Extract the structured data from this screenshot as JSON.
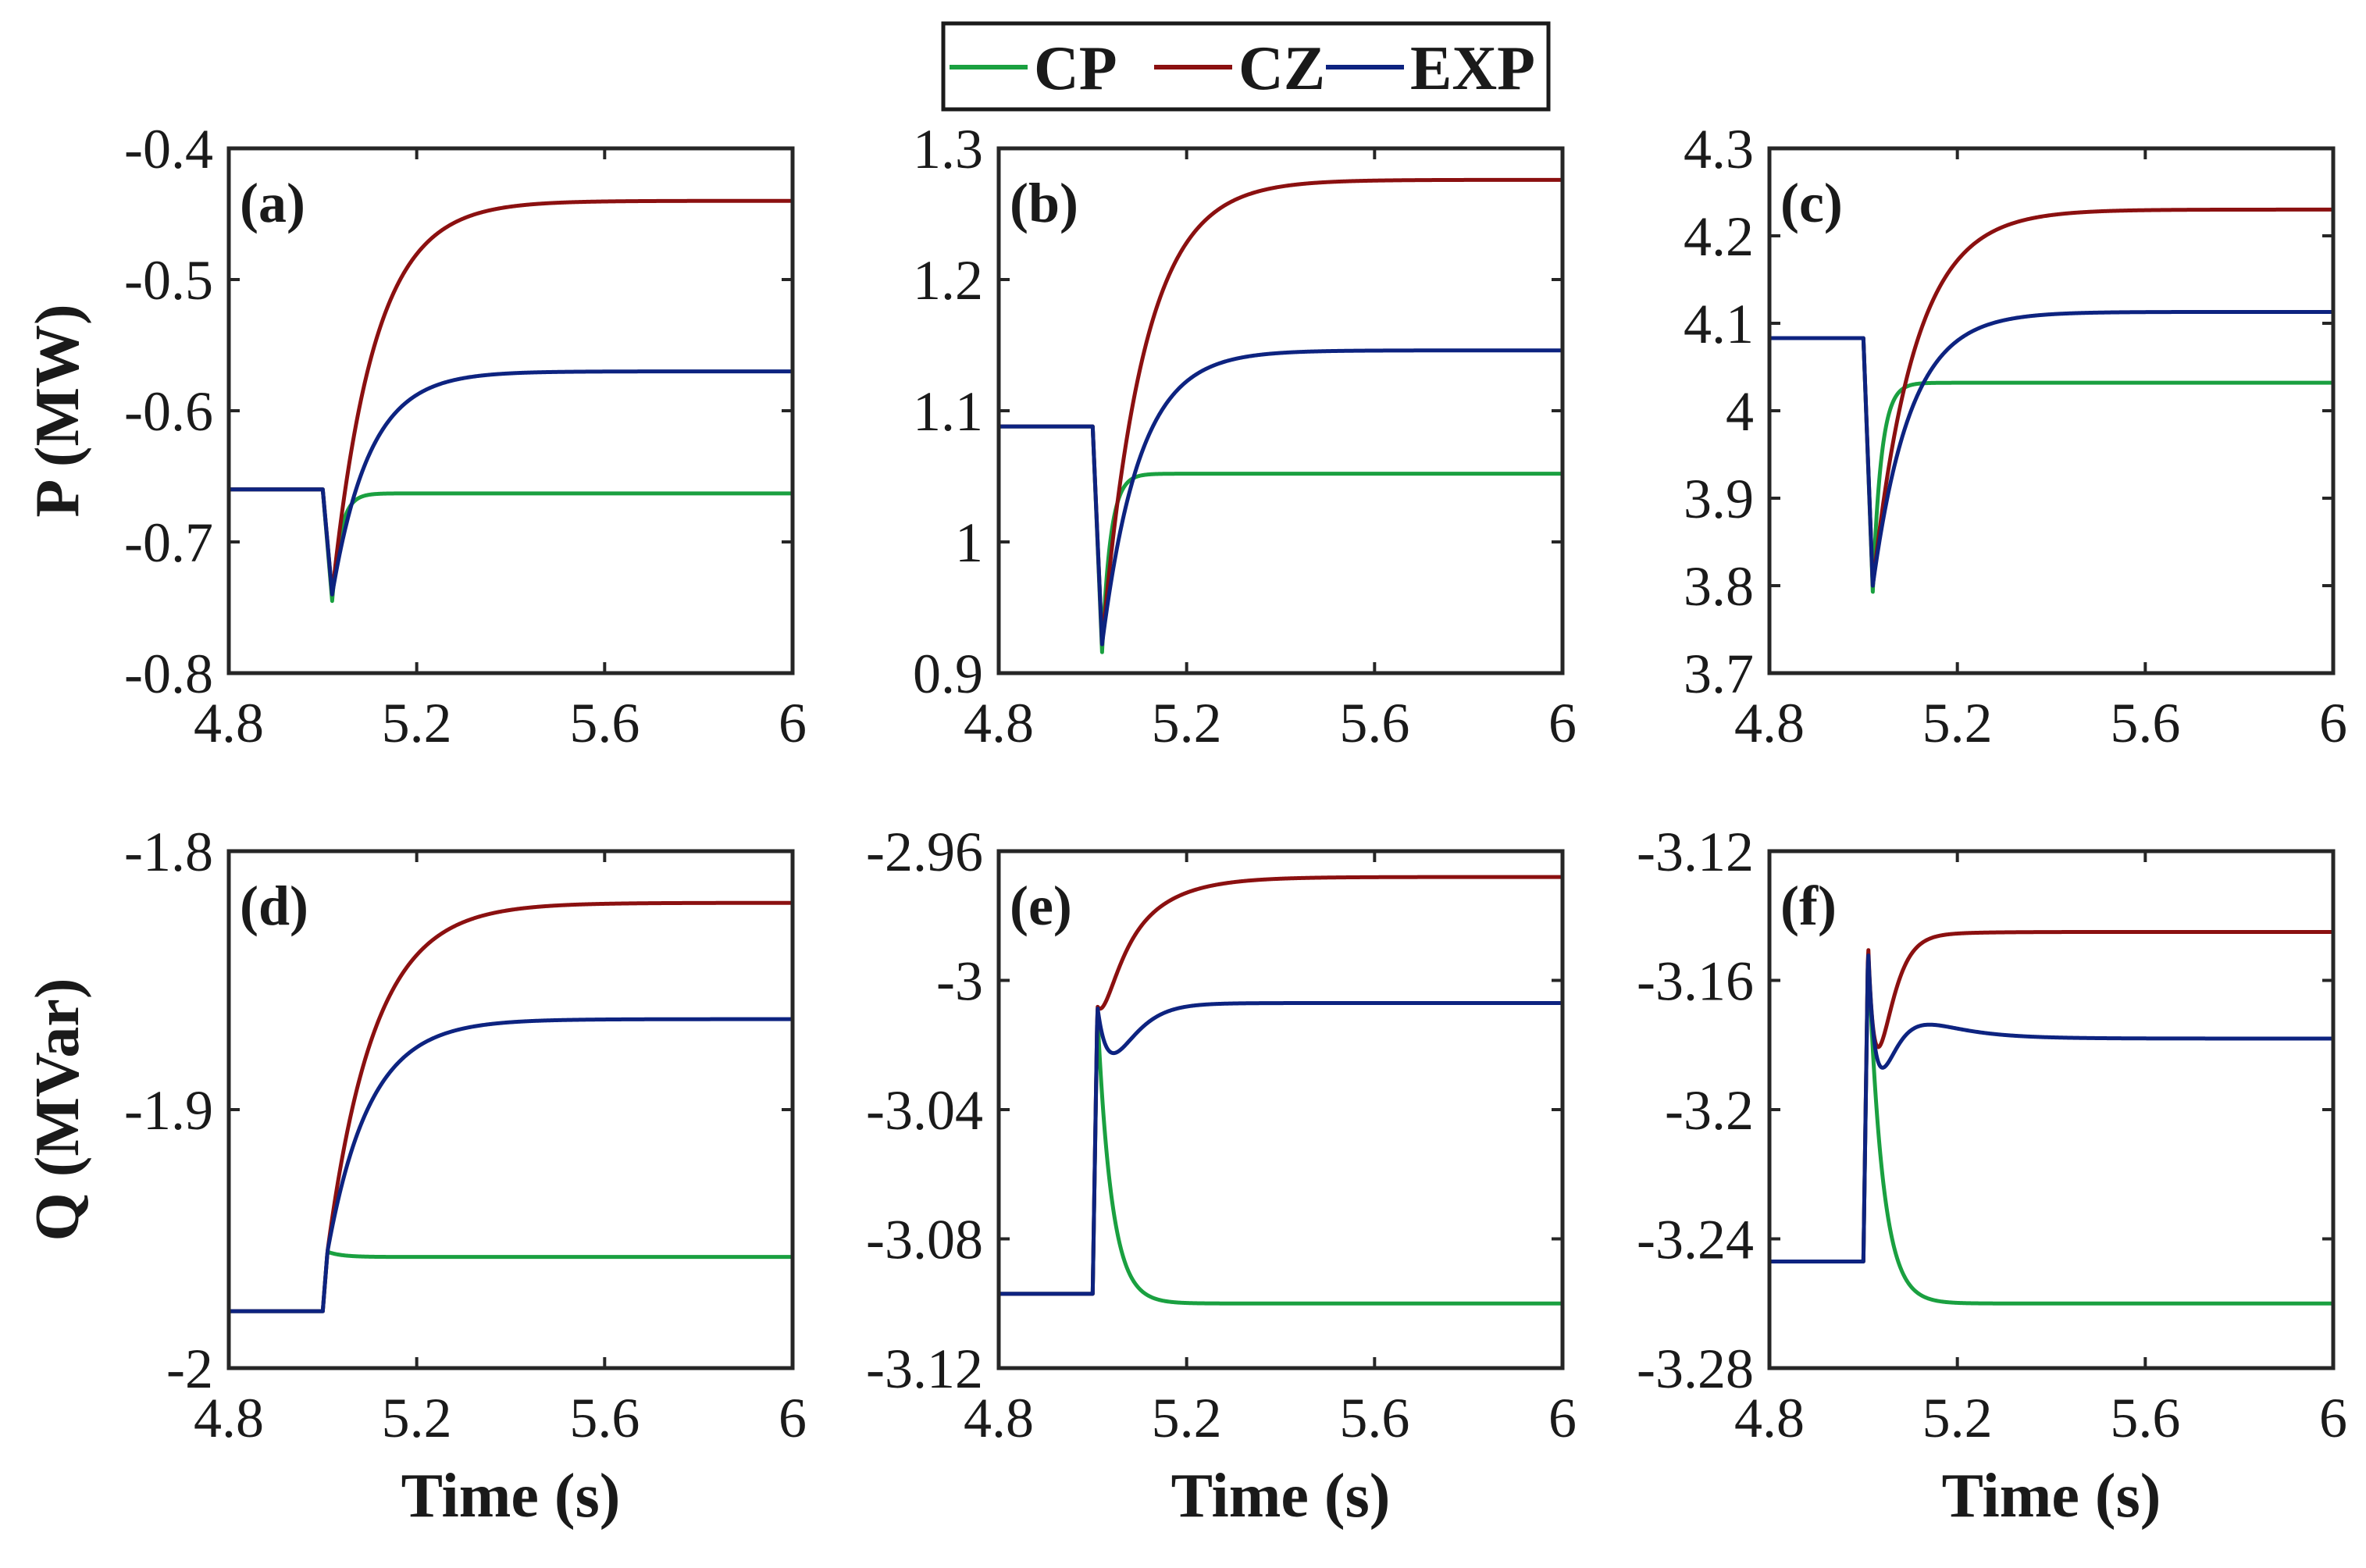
{
  "chart_data": [
    {
      "type": "line",
      "panel": "(a)",
      "ylabel": "P (MW)",
      "xlabel": "",
      "xlim": [
        4.8,
        6
      ],
      "ylim": [
        -0.8,
        -0.4
      ],
      "xticks": [
        "4.8",
        "5.2",
        "5.6",
        "6"
      ],
      "yticks": [
        "-0.4",
        "-0.5",
        "-0.6",
        "-0.7",
        "-0.8"
      ],
      "x_disturbance": 5.0,
      "pre": -0.66,
      "series": [
        {
          "name": "CP",
          "dip": -0.745,
          "final": -0.663,
          "tau": 0.018
        },
        {
          "name": "CZ",
          "dip": -0.74,
          "final": -0.44,
          "tau": 0.09
        },
        {
          "name": "EXP",
          "dip": -0.74,
          "final": -0.57,
          "tau": 0.08
        }
      ]
    },
    {
      "type": "line",
      "panel": "(b)",
      "ylabel": "",
      "xlabel": "",
      "xlim": [
        4.8,
        6
      ],
      "ylim": [
        0.9,
        1.3
      ],
      "xticks": [
        "4.8",
        "5.2",
        "5.6",
        "6"
      ],
      "yticks": [
        "1.3",
        "1.2",
        "1.1",
        "1",
        "0.9"
      ],
      "x_disturbance": 5.0,
      "pre": 1.088,
      "series": [
        {
          "name": "CP",
          "dip": 0.916,
          "final": 1.052,
          "tau": 0.018
        },
        {
          "name": "CZ",
          "dip": 0.922,
          "final": 1.276,
          "tau": 0.09
        },
        {
          "name": "EXP",
          "dip": 0.922,
          "final": 1.146,
          "tau": 0.08
        }
      ]
    },
    {
      "type": "line",
      "panel": "(c)",
      "ylabel": "",
      "xlabel": "",
      "xlim": [
        4.8,
        6
      ],
      "ylim": [
        3.7,
        4.3
      ],
      "xticks": [
        "4.8",
        "5.2",
        "5.6",
        "6"
      ],
      "yticks": [
        "4.3",
        "4.2",
        "4.1",
        "4",
        "3.9",
        "3.8",
        "3.7"
      ],
      "x_disturbance": 5.0,
      "pre": 4.083,
      "series": [
        {
          "name": "CP",
          "dip": 3.793,
          "final": 4.032,
          "tau": 0.018
        },
        {
          "name": "CZ",
          "dip": 3.8,
          "final": 4.23,
          "tau": 0.09
        },
        {
          "name": "EXP",
          "dip": 3.8,
          "final": 4.113,
          "tau": 0.08
        }
      ]
    },
    {
      "type": "line",
      "panel": "(d)",
      "ylabel": "Q (MVar)",
      "xlabel": "Time (s)",
      "xlim": [
        4.8,
        6
      ],
      "ylim": [
        -2,
        -1.8
      ],
      "xticks": [
        "4.8",
        "5.2",
        "5.6",
        "6"
      ],
      "yticks": [
        "-1.8",
        "-1.9",
        "-2"
      ],
      "x_disturbance": 5.0,
      "pre": -1.978,
      "series": [
        {
          "name": "CP",
          "peak": -1.955,
          "final": -1.957,
          "tau": 0.03
        },
        {
          "name": "CZ",
          "peak": -1.955,
          "final": -1.82,
          "tau": 0.1
        },
        {
          "name": "EXP",
          "peak": -1.955,
          "final": -1.865,
          "tau": 0.09
        }
      ]
    },
    {
      "type": "line",
      "panel": "(e)",
      "ylabel": "",
      "xlabel": "Time (s)",
      "xlim": [
        4.8,
        6
      ],
      "ylim": [
        -3.12,
        -2.96
      ],
      "xticks": [
        "4.8",
        "5.2",
        "5.6",
        "6"
      ],
      "yticks": [
        "-2.96",
        "-3",
        "-3.04",
        "-3.08",
        "-3.12"
      ],
      "x_disturbance": 5.0,
      "pre": -3.097,
      "series": [
        {
          "name": "CP",
          "peak": -3.01,
          "final": -3.1,
          "tau": 0.03
        },
        {
          "name": "CZ",
          "peak": -3.008,
          "final": -2.968,
          "tau": 0.09,
          "dip_amp": 0.016,
          "dip_tau": 0.022
        },
        {
          "name": "EXP",
          "peak": -3.008,
          "final": -3.007,
          "tau": 0.1,
          "dip_amp": 0.04,
          "dip_tau": 0.035
        }
      ]
    },
    {
      "type": "line",
      "panel": "(f)",
      "ylabel": "",
      "xlabel": "Time (s)",
      "xlim": [
        4.8,
        6
      ],
      "ylim": [
        -3.28,
        -3.12
      ],
      "xticks": [
        "4.8",
        "5.2",
        "5.6",
        "6"
      ],
      "yticks": [
        "-3.12",
        "-3.16",
        "-3.2",
        "-3.24",
        "-3.28"
      ],
      "x_disturbance": 5.0,
      "pre": -3.247,
      "series": [
        {
          "name": "CP",
          "peak": -3.15,
          "final": -3.26,
          "tau": 0.03
        },
        {
          "name": "CZ",
          "peak": -3.148,
          "final": -3.145,
          "tau": 0.09,
          "dip_amp": 0.09,
          "dip_tau": 0.022
        },
        {
          "name": "EXP",
          "peak": -3.15,
          "final": -3.178,
          "tau": 0.09,
          "dip_amp": 0.08,
          "dip_tau": 0.025
        }
      ]
    }
  ],
  "legend": {
    "position": "top-center",
    "entries": [
      {
        "label": "CP",
        "color": "#1aa040"
      },
      {
        "label": "CZ",
        "color": "#8b1010"
      },
      {
        "label": "EXP",
        "color": "#0d2380"
      }
    ]
  }
}
